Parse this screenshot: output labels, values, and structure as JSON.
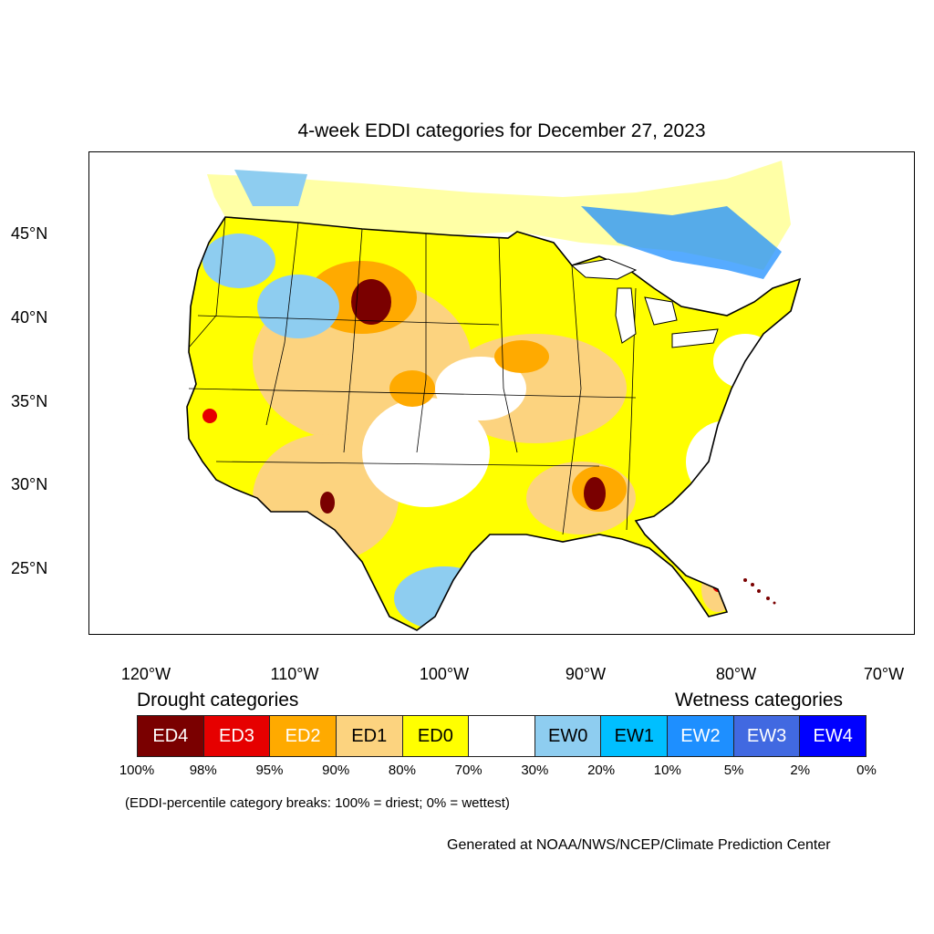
{
  "title": "4-week EDDI categories for December 27, 2023",
  "latitude_labels": [
    "45°N",
    "40°N",
    "35°N",
    "30°N",
    "25°N"
  ],
  "longitude_labels": [
    "120°W",
    "110°W",
    "100°W",
    "90°W",
    "80°W",
    "70°W"
  ],
  "drought_label": "Drought categories",
  "wetness_label": "Wetness categories",
  "legend": [
    {
      "label": "ED4",
      "color": "#7a0000",
      "text_color": "#ffffff"
    },
    {
      "label": "ED3",
      "color": "#e60000",
      "text_color": "#ffffff"
    },
    {
      "label": "ED2",
      "color": "#ffaa00",
      "text_color": "#ffffff"
    },
    {
      "label": "ED1",
      "color": "#fcd37f",
      "text_color": "#000000"
    },
    {
      "label": "ED0",
      "color": "#ffff00",
      "text_color": "#000000"
    },
    {
      "label": "",
      "color": "#ffffff",
      "text_color": "#000000"
    },
    {
      "label": "EW0",
      "color": "#8ecdf0",
      "text_color": "#000000"
    },
    {
      "label": "EW1",
      "color": "#00bfff",
      "text_color": "#000000"
    },
    {
      "label": "EW2",
      "color": "#1e8fff",
      "text_color": "#ffffff"
    },
    {
      "label": "EW3",
      "color": "#4169e1",
      "text_color": "#ffffff"
    },
    {
      "label": "EW4",
      "color": "#0000ff",
      "text_color": "#ffffff"
    }
  ],
  "percent_breaks": [
    "100%",
    "98%",
    "95%",
    "90%",
    "80%",
    "70%",
    "30%",
    "20%",
    "10%",
    "5%",
    "2%",
    "0%"
  ],
  "note": "(EDDI-percentile category breaks: 100% = driest; 0% = wettest)",
  "credit": "Generated at NOAA/NWS/NCEP/Climate Prediction Center"
}
